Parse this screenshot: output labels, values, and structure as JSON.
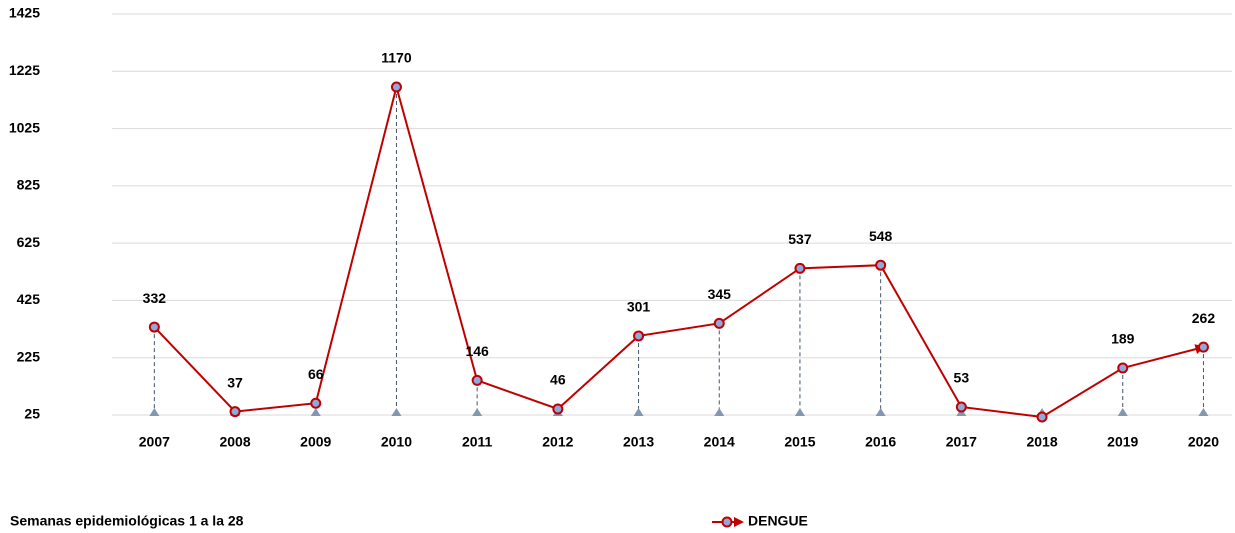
{
  "chart_data": {
    "type": "line",
    "categories": [
      "2007",
      "2008",
      "2009",
      "2010",
      "2011",
      "2012",
      "2013",
      "2014",
      "2015",
      "2016",
      "2017",
      "2018",
      "2019",
      "2020"
    ],
    "series": [
      {
        "name": "DENGUE",
        "color": "#c00000",
        "values": [
          332,
          37,
          66,
          1170,
          146,
          46,
          301,
          345,
          537,
          548,
          53,
          18,
          189,
          262
        ],
        "value_labels": [
          "332",
          "37",
          "66",
          "1170",
          "146",
          "46",
          "301",
          "345",
          "537",
          "548",
          "53",
          null,
          "189",
          "262"
        ]
      }
    ],
    "ylim": [
      25,
      1425
    ],
    "yticks": [
      25,
      225,
      425,
      625,
      825,
      1025,
      1225,
      1425
    ],
    "grid": true,
    "footnote": "Semanas epidemiológicas 1 a la 28",
    "legend": "bottom"
  }
}
